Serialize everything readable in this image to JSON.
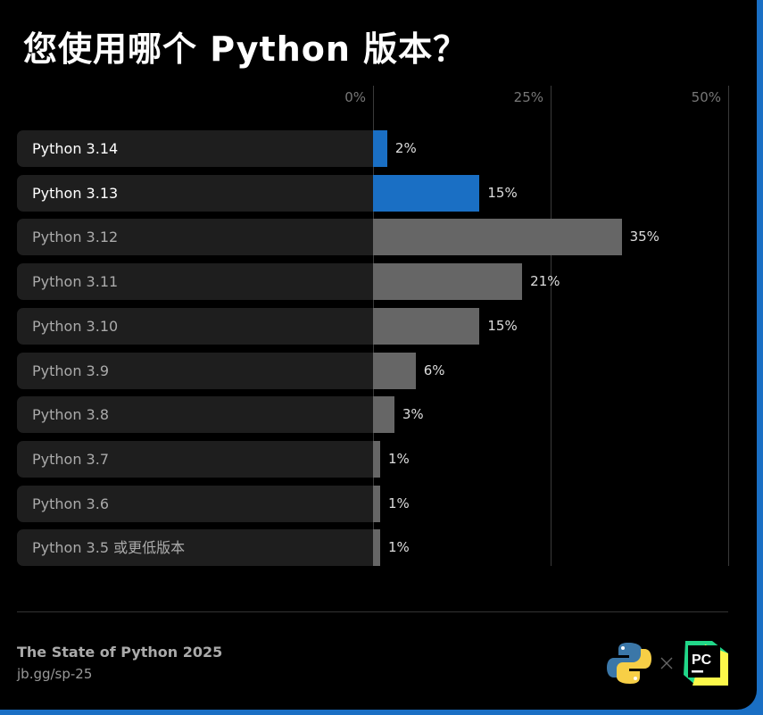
{
  "title": "您使用哪个 Python 版本？",
  "chart_data": {
    "type": "bar",
    "orientation": "horizontal",
    "title": "您使用哪个 Python 版本？",
    "categories": [
      "Python 3.14",
      "Python 3.13",
      "Python 3.12",
      "Python 3.11",
      "Python 3.10",
      "Python 3.9",
      "Python 3.8",
      "Python 3.7",
      "Python 3.6",
      "Python 3.5 或更低版本"
    ],
    "values": [
      2,
      15,
      35,
      21,
      15,
      6,
      3,
      1,
      1,
      1
    ],
    "value_labels": [
      "2%",
      "15%",
      "35%",
      "21%",
      "15%",
      "6%",
      "3%",
      "1%",
      "1%",
      "1%"
    ],
    "highlighted": [
      true,
      true,
      false,
      false,
      false,
      false,
      false,
      false,
      false,
      false
    ],
    "xlim": [
      0,
      50
    ],
    "x_ticks": [
      "0%",
      "25%",
      "50%"
    ],
    "grid": true,
    "colors": {
      "highlight": "#1a6fc4",
      "default": "#666666",
      "background": "#000000"
    }
  },
  "footer": {
    "source": "The State of Python 2025",
    "link": "jb.gg/sp-25",
    "logos": [
      "python-logo",
      "pycharm-logo"
    ],
    "logo_text": "PC"
  }
}
